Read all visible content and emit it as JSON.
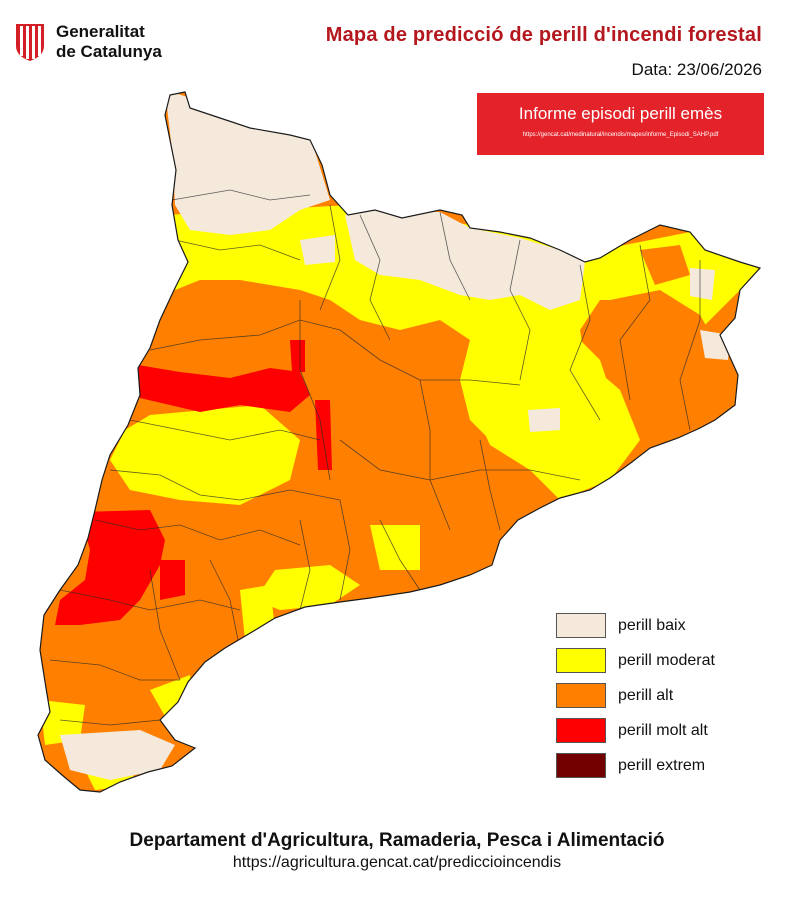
{
  "header": {
    "logo_line1": "Generalitat",
    "logo_line2": "de Catalunya",
    "title": "Mapa de predicció de perill d'incendi forestal",
    "date": "Data: 23/06/2026"
  },
  "alert": {
    "title": "Informe episodi perill emès",
    "url": "https://gencat.cat/medinatural/incendis/mapes/informe_Episodi_SAHP.pdf",
    "color": "#e3222a"
  },
  "legend": [
    {
      "label": "perill baix",
      "color": "#f5e9dc"
    },
    {
      "label": "perill moderat",
      "color": "#ffff00"
    },
    {
      "label": "perill alt",
      "color": "#ff8000"
    },
    {
      "label": "perill molt alt",
      "color": "#ff0000"
    },
    {
      "label": "perill extrem",
      "color": "#730000"
    }
  ],
  "footer": {
    "department": "Departament d'Agricultura, Ramaderia, Pesca i Alimentació",
    "url": "https://agricultura.gencat.cat/prediccioincendis"
  }
}
